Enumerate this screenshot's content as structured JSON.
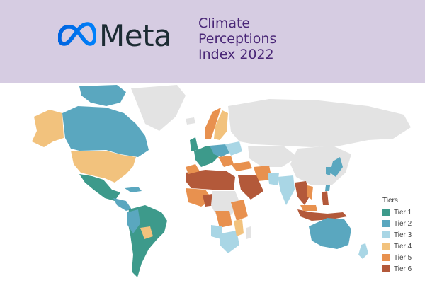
{
  "header": {
    "logo_text": "Meta",
    "title_lines": [
      "Climate",
      "Perceptions",
      "Index 2022"
    ]
  },
  "legend": {
    "title": "Tiers",
    "items": [
      {
        "label": "Tier 1",
        "color": "#3d9a8b"
      },
      {
        "label": "Tier 2",
        "color": "#5aa7bf"
      },
      {
        "label": "Tier 3",
        "color": "#a9d6e5"
      },
      {
        "label": "Tier 4",
        "color": "#f2c27d"
      },
      {
        "label": "Tier 5",
        "color": "#e8914f"
      },
      {
        "label": "Tier 6",
        "color": "#b3593a"
      }
    ]
  },
  "colors": {
    "no_data": "#e3e3e3",
    "header_bg": "#d6cce2",
    "title": "#4a2777",
    "logo_text": "#1c2b33"
  }
}
